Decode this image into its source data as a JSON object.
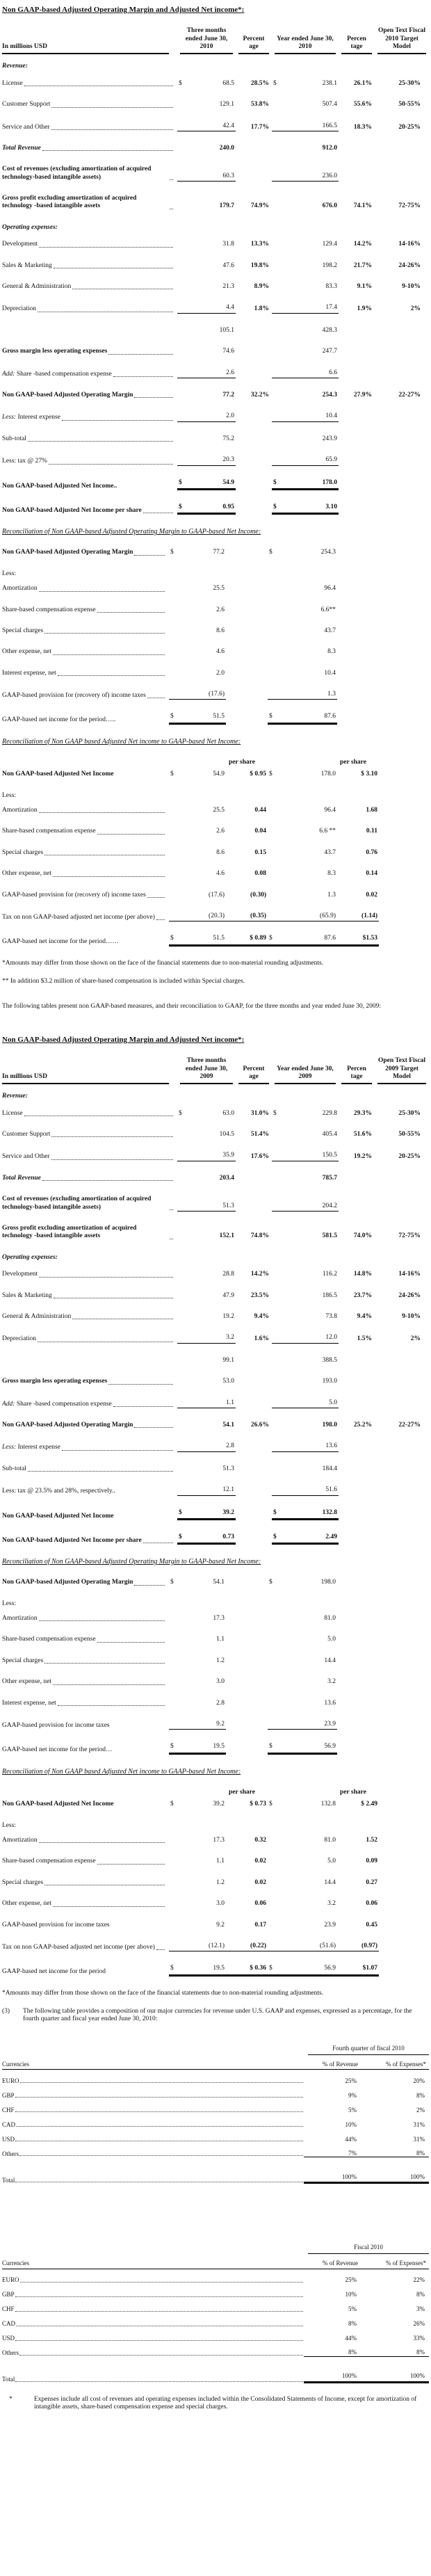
{
  "sections": {
    "s2010": {
      "title": "Non GAAP-based Adjusted Operating Margin and Adjusted Net income*:",
      "recon_margin_title": "Reconciliation of  Non GAAP-based Adjusted Operating Margin  to GAAP-based Net Income:",
      "recon_net_title": "Reconciliation of  Non GAAP based Adjusted  Net income to GAAP-based Net Income:"
    },
    "s2009": {
      "title": "Non GAAP-based Adjusted Operating Margin and Adjusted Net income*:",
      "recon_margin_title": "Reconciliation of  Non GAAP-based Adjusted Operating Margin  to GAAP-based Net Income:",
      "recon_net_title": "Reconciliation of  Non GAAP based Adjusted  Net income to GAAP-based Net Income:"
    }
  },
  "notes": {
    "fn1": "*Amounts may differ from those shown on the face of the financial statements due to non-material rounding adjustments.",
    "fn2": "** In addition $3.2 million of share-based compensation is included within Special charges.",
    "intro_2009": "The following tables present non GAAP-based measures, and their reconciliation to GAAP, for the three months and year ended June 30, 2009:",
    "fn3": "*Amounts may differ from those shown on the face of the financial statements due to non-material rounding adjustments.",
    "item3_marker": "(3)",
    "item3": "The following table provides a composition of our major currencies for revenue under U.S. GAAP and expenses, expressed as a percentage, for the fourth quarter and fiscal year ended June 30, 2010:",
    "expenses_marker": "*",
    "expenses": "Expenses include all cost of revenues and operating expenses included within the Consolidated Statements of Income, except for amortization of intangible assets, share-based compensation expense and special charges."
  },
  "tables": {
    "t2010": {
      "kind": "main",
      "header": {
        "label": "In millions USD",
        "c1": "Three months ended June 30, 2010",
        "c2": "Percent age",
        "c3": "Year ended June 30, 2010",
        "c4": "Percen tage",
        "c5": "Open Text Fiscal 2010 Target Model"
      },
      "rows": [
        {
          "l": "Revenue:",
          "ls": "bi",
          "sec": true
        },
        {
          "l": "License",
          "leader": true,
          "d1": "$",
          "v1": "68.5",
          "p1": "28.5%",
          "d2": "$",
          "v2": "238.1",
          "p2": "26.1%",
          "tg": "25-30%"
        },
        {
          "l": "Customer Support",
          "leader": true,
          "v1": "129.1",
          "p1": "53.8%",
          "v2": "507.4",
          "p2": "55.6%",
          "tg": "50-55%"
        },
        {
          "l": "Service and Other",
          "leader": true,
          "v1": "42.4",
          "p1": "17.7%",
          "v2": "166.5",
          "p2": "18.3%",
          "tg": "20-25%",
          "ul": "s"
        },
        {
          "l": "Total Revenue",
          "ls": "bi",
          "leader": true,
          "v1": "240.0",
          "v2": "912.0",
          "vb": true
        },
        {
          "l": "Cost of revenues (excluding amortization of acquired technology-based intangible assets)",
          "ls": "b",
          "leader": true,
          "v1": "60.3",
          "v2": "236.0",
          "ul": "s"
        },
        {
          "l": "Gross profit excluding amortization of acquired technology -based intangible assets",
          "ls": "b",
          "leader": true,
          "v1": "179.7",
          "p1": "74.9%",
          "v2": "676.0",
          "p2": "74.1%",
          "tg": "72-75%",
          "vb": true
        },
        {
          "l": "Operating expenses:",
          "ls": "bi",
          "sec": true
        },
        {
          "l": "Development",
          "leader": true,
          "v1": "31.8",
          "p1": "13.3%",
          "v2": "129.4",
          "p2": "14.2%",
          "tg": "14-16%"
        },
        {
          "l": "Sales & Marketing",
          "leader": true,
          "v1": "47.6",
          "p1": "19.8%",
          "v2": "198.2",
          "p2": "21.7%",
          "tg": "24-26%"
        },
        {
          "l": "General & Administration",
          "leader": true,
          "v1": "21.3",
          "p1": "8.9%",
          "v2": "83.3",
          "p2": "9.1%",
          "tg": "9-10%"
        },
        {
          "l": "Depreciation",
          "leader": true,
          "v1": "4.4",
          "p1": "1.8%",
          "v2": "17.4",
          "p2": "1.9%",
          "tg": "2%",
          "ul": "s"
        },
        {
          "l": "",
          "v1": "105.1",
          "v2": "428.3"
        },
        {
          "l": "Gross margin less operating expenses",
          "ls": "b",
          "leader": true,
          "v1": "74.6",
          "v2": "247.7"
        },
        {
          "pre": "Add:",
          "l": " Share -based compensation expense",
          "leader": true,
          "v1": "2.6",
          "v2": "6.6",
          "ul": "s"
        },
        {
          "l": "Non GAAP-based Adjusted Operating Margin",
          "ls": "b",
          "leader": true,
          "v1": "77.2",
          "p1": "32.2%",
          "v2": "254.3",
          "p2": "27.9%",
          "tg": "22-27%",
          "vb": true
        },
        {
          "pre": "Less:",
          "l": " Interest expense",
          "leader": true,
          "v1": "2.0",
          "v2": "10.4",
          "ul": "s"
        },
        {
          "l": "Sub-total",
          "leader": true,
          "v1": "75.2",
          "v2": "243.9"
        },
        {
          "l": "Less: tax @ 27%",
          "leader": true,
          "v1": "20.3",
          "v2": "65.9",
          "ul": "s"
        },
        {
          "l": "Non GAAP-based Adjusted Net Income..",
          "ls": "b",
          "d1": "$",
          "v1": "54.9",
          "d2": "$",
          "v2": "178.0",
          "vb": true,
          "ul": "t"
        },
        {
          "l": "Non GAAP-based Adjusted Net Income per share",
          "ls": "b",
          "leader": true,
          "d1": "$",
          "v1": "0.95",
          "d2": "$",
          "v2": "3.10",
          "vb": true,
          "ul": "t"
        }
      ]
    },
    "r1_2010": {
      "kind": "recon",
      "rows": [
        {
          "l": "Non GAAP-based Adjusted Operating Margin",
          "ls": "b",
          "leader": true,
          "d1": "$",
          "v1": "77.2",
          "d2": "$",
          "v2": "254.3"
        },
        {
          "l": "Less:",
          "tight": true
        },
        {
          "l": "Amortization",
          "leader": true,
          "v1": "25.5",
          "v2": "96.4"
        },
        {
          "l": "Share-based compensation expense",
          "leader": true,
          "v1": "2.6",
          "v2": "6.6**"
        },
        {
          "l": "Special charges",
          "leader": true,
          "v1": "8.6",
          "v2": "43.7"
        },
        {
          "l": "Other expense, net",
          "leader": true,
          "v1": "4.6",
          "v2": "8.3"
        },
        {
          "l": "Interest expense, net",
          "leader": true,
          "v1": "2.0",
          "v2": "10.4"
        },
        {
          "l": "GAAP-based provision for (recovery of) income taxes",
          "leader": true,
          "v1": "(17.6)",
          "v2": "1.3",
          "ul": "s"
        },
        {
          "l": "GAAP-based net income for the period…..",
          "d1": "$",
          "v1": "51.5",
          "d2": "$",
          "v2": "87.6",
          "ul": "t"
        }
      ]
    },
    "r2_2010": {
      "kind": "recon",
      "pershare": true,
      "ps_header": "per share",
      "rows": [
        {
          "l": "Non GAAP-based Adjusted Net Income",
          "ls": "b",
          "d1": "$",
          "v1": "54.9",
          "ps1": "$ 0.95",
          "d2": "$",
          "v2": "178.0",
          "ps2": "$ 3.10"
        },
        {
          "l": "Less:",
          "tight": true
        },
        {
          "l": "Amortization",
          "leader": true,
          "v1": "25.5",
          "ps1": "0.44",
          "v2": "96.4",
          "ps2": "1.68"
        },
        {
          "l": "Share-based compensation expense",
          "leader": true,
          "v1": "2.6",
          "ps1": "0.04",
          "v2": "6.6 **",
          "ps2": "0.11"
        },
        {
          "l": "Special charges",
          "leader": true,
          "v1": "8.6",
          "ps1": "0.15",
          "v2": "43.7",
          "ps2": "0.76"
        },
        {
          "l": "Other expense, net",
          "leader": true,
          "v1": "4.6",
          "ps1": "0.08",
          "v2": "8.3",
          "ps2": "0.14"
        },
        {
          "l": "GAAP-based provision for (recovery of) income taxes",
          "leader": true,
          "v1": "(17.6)",
          "ps1": "(0.30)",
          "v2": "1.3",
          "ps2": "0.02"
        },
        {
          "l": "Tax on non GAAP-based adjusted net income (per above)",
          "leader": true,
          "v1": "(20.3)",
          "ps1": "(0.35)",
          "v2": "(65.9)",
          "ps2": "(1.14)",
          "ul": "s"
        },
        {
          "l": "GAAP-based net income for the period……",
          "d1": "$",
          "v1": "51.5",
          "ps1": "$ 0.89",
          "d2": "$",
          "v2": "87.6",
          "ps2": "$1.53",
          "ul": "t"
        }
      ]
    },
    "t2009": {
      "kind": "main",
      "header": {
        "label": "In millions USD",
        "c1": "Three months ended June 30, 2009",
        "c2": "Percent age",
        "c3": "Year ended June 30, 2009",
        "c4": "Percen tage",
        "c5": "Open Text Fiscal 2009 Target Model"
      },
      "rows": [
        {
          "l": "Revenue:",
          "ls": "bi",
          "sec": true
        },
        {
          "l": "License",
          "leader": true,
          "d1": "$",
          "v1": "63.0",
          "p1": "31.0%",
          "d2": "$",
          "v2": "229.8",
          "p2": "29.3%",
          "tg": "25-30%"
        },
        {
          "l": "Customer Support",
          "leader": true,
          "v1": "104.5",
          "p1": "51.4%",
          "v2": "405.4",
          "p2": "51.6%",
          "tg": "50-55%"
        },
        {
          "l": "Service and Other",
          "leader": true,
          "v1": "35.9",
          "p1": "17.6%",
          "v2": "150.5",
          "p2": "19.2%",
          "tg": "20-25%",
          "ul": "s"
        },
        {
          "l": "Total Revenue",
          "ls": "bi",
          "leader": true,
          "v1": "203.4",
          "v2": "785.7",
          "vb": true
        },
        {
          "l": "Cost of revenues (excluding amortization of acquired technology-based intangible assets)",
          "ls": "b",
          "leader": true,
          "v1": "51.3",
          "v2": "204.2",
          "ul": "s"
        },
        {
          "l": "Gross profit excluding amortization of acquired technology -based intangible assets",
          "ls": "b",
          "leader": true,
          "v1": "152.1",
          "p1": "74.8%",
          "v2": "581.5",
          "p2": "74.0%",
          "tg": "72-75%",
          "vb": true
        },
        {
          "l": "Operating expenses:",
          "ls": "bi",
          "sec": true
        },
        {
          "l": "Development",
          "leader": true,
          "v1": "28.8",
          "p1": "14.2%",
          "v2": "116.2",
          "p2": "14.8%",
          "tg": "14-16%"
        },
        {
          "l": "Sales & Marketing",
          "leader": true,
          "v1": "47.9",
          "p1": "23.5%",
          "v2": "186.5",
          "p2": "23.7%",
          "tg": "24-26%"
        },
        {
          "l": "General & Administration",
          "leader": true,
          "v1": "19.2",
          "p1": "9.4%",
          "v2": "73.8",
          "p2": "9.4%",
          "tg": "9-10%"
        },
        {
          "l": "Depreciation",
          "leader": true,
          "v1": "3.2",
          "p1": "1.6%",
          "v2": "12.0",
          "p2": "1.5%",
          "tg": "2%",
          "ul": "s"
        },
        {
          "l": "",
          "v1": "99.1",
          "v2": "388.5"
        },
        {
          "l": "Gross margin less operating expenses",
          "ls": "b",
          "leader": true,
          "v1": "53.0",
          "v2": "193.0"
        },
        {
          "pre": "Add:",
          "l": " Share -based compensation expense",
          "leader": true,
          "v1": "1.1",
          "v2": "5.0",
          "ul": "s"
        },
        {
          "l": "Non GAAP-based Adjusted Operating Margin",
          "ls": "b",
          "leader": true,
          "v1": "54.1",
          "p1": "26.6%",
          "v2": "198.0",
          "p2": "25.2%",
          "tg": "22-27%",
          "vb": true
        },
        {
          "pre": "Less:",
          "l": " Interest expense",
          "leader": true,
          "v1": "2.8",
          "v2": "13.6",
          "ul": "s"
        },
        {
          "l": "Sub-total",
          "leader": true,
          "v1": "51.3",
          "v2": "184.4"
        },
        {
          "l": "Less: tax @ 23.5% and 28%, respectively..",
          "v1": "12.1",
          "v2": "51.6",
          "ul": "s"
        },
        {
          "l": "Non GAAP-based Adjusted Net Income",
          "ls": "b",
          "d1": "$",
          "v1": "39.2",
          "d2": "$",
          "v2": "132.8",
          "vb": true,
          "ul": "t"
        },
        {
          "l": "Non GAAP-based Adjusted Net Income per share",
          "ls": "b",
          "leader": true,
          "d1": "$",
          "v1": "0.73",
          "d2": "$",
          "v2": "2.49",
          "vb": true,
          "ul": "t"
        }
      ]
    },
    "r1_2009": {
      "kind": "recon",
      "rows": [
        {
          "l": "Non GAAP-based Adjusted Operating Margin",
          "ls": "b",
          "leader": true,
          "d1": "$",
          "v1": "54.1",
          "d2": "$",
          "v2": "198.0"
        },
        {
          "l": "Less:",
          "tight": true
        },
        {
          "l": "Amortization",
          "leader": true,
          "v1": "17.3",
          "v2": "81.0"
        },
        {
          "l": "Share-based compensation expense",
          "leader": true,
          "v1": "1.1",
          "v2": "5.0"
        },
        {
          "l": "Special charges",
          "leader": true,
          "v1": "1.2",
          "v2": "14.4"
        },
        {
          "l": "Other expense, net",
          "leader": true,
          "v1": "3.0",
          "v2": "3.2"
        },
        {
          "l": "Interest expense, net",
          "leader": true,
          "v1": "2.8",
          "v2": "13.6"
        },
        {
          "l": "GAAP-based provision for  income taxes",
          "v1": "9.2",
          "v2": "23.9",
          "ul": "s"
        },
        {
          "l": "GAAP-based net income for the period…",
          "d1": "$",
          "v1": "19.5",
          "d2": "$",
          "v2": "56.9",
          "ul": "t"
        }
      ]
    },
    "r2_2009": {
      "kind": "recon",
      "pershare": true,
      "ps_header": "per share",
      "rows": [
        {
          "l": "Non GAAP-based Adjusted Net Income",
          "ls": "b",
          "d1": "$",
          "v1": "39.2",
          "ps1": "$ 0.73",
          "d2": "$",
          "v2": "132.8",
          "ps2": "$ 2.49"
        },
        {
          "l": "Less:",
          "tight": true
        },
        {
          "l": "Amortization",
          "leader": true,
          "v1": "17.3",
          "ps1": "0.32",
          "v2": "81.0",
          "ps2": "1.52"
        },
        {
          "l": "Share-based compensation expense",
          "leader": true,
          "v1": "1.1",
          "ps1": "0.02",
          "v2": "5.0",
          "ps2": "0.09"
        },
        {
          "l": "Special charges",
          "leader": true,
          "v1": "1.2",
          "ps1": "0.02",
          "v2": "14.4",
          "ps2": "0.27"
        },
        {
          "l": "Other expense, net",
          "leader": true,
          "v1": "3.0",
          "ps1": "0.06",
          "v2": "3.2",
          "ps2": "0.06"
        },
        {
          "l": "GAAP-based provision for income taxes",
          "v1": "9.2",
          "ps1": "0.17",
          "v2": "23.9",
          "ps2": "0.45"
        },
        {
          "l": "Tax on non GAAP-based adjusted net income (per above)",
          "leader": true,
          "v1": "(12.1)",
          "ps1": "(0.22)",
          "v2": "(51.6)",
          "ps2": "(0.97)",
          "ul": "s"
        },
        {
          "l": "GAAP-based net income for the period",
          "d1": "$",
          "v1": "19.5",
          "ps1": "$ 0.36",
          "d2": "$",
          "v2": "56.9",
          "ps2": "$1.07",
          "ul": "t"
        }
      ]
    },
    "ct1": {
      "kind": "currency",
      "period": "Fourth quarter of fiscal 2010",
      "cols": {
        "c": "Currencies",
        "rev": "% of Revenue",
        "exp": "% of Expenses*"
      },
      "rows": [
        {
          "c": "EURO",
          "rev": "25%",
          "exp": "20%"
        },
        {
          "c": "GBP",
          "rev": "9%",
          "exp": "8%"
        },
        {
          "c": "CHF",
          "rev": "5%",
          "exp": "2%"
        },
        {
          "c": "CAD",
          "rev": "10%",
          "exp": "31%"
        },
        {
          "c": "USD",
          "rev": "44%",
          "exp": "31%"
        },
        {
          "c": "Others",
          "rev": "7%",
          "exp": "8%",
          "ul": "s"
        }
      ],
      "total": {
        "c": "Total",
        "rev": "100%",
        "exp": "100%"
      }
    },
    "ct2": {
      "kind": "currency",
      "period": "Fiscal 2010",
      "cols": {
        "c": "Currencies",
        "rev": "% of Revenue",
        "exp": "% of Expenses*"
      },
      "rows": [
        {
          "c": "EURO",
          "rev": "25%",
          "exp": "22%"
        },
        {
          "c": "GBP",
          "rev": "10%",
          "exp": "8%"
        },
        {
          "c": "CHF",
          "rev": "5%",
          "exp": "3%"
        },
        {
          "c": "CAD",
          "rev": "8%",
          "exp": "26%"
        },
        {
          "c": "USD",
          "rev": "44%",
          "exp": "33%"
        },
        {
          "c": "Others",
          "rev": "8%",
          "exp": "8%",
          "ul": "s"
        }
      ],
      "total": {
        "c": "Total",
        "rev": "100%",
        "exp": "100%"
      }
    }
  }
}
